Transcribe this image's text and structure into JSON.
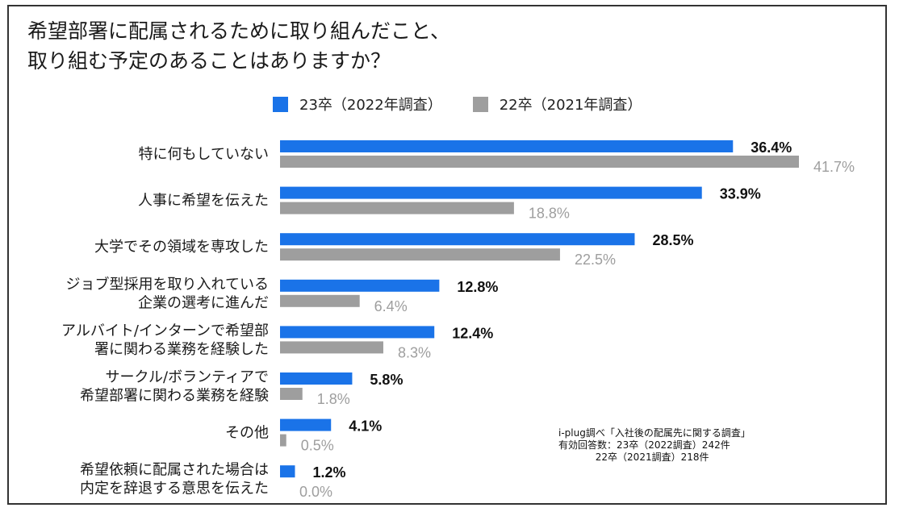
{
  "chart_data": {
    "type": "bar",
    "orientation": "horizontal",
    "title": [
      "希望部署に配属されるために取り組んだこと、",
      "取り組む予定のあることはありますか？"
    ],
    "categories": [
      [
        "特に何もしていない"
      ],
      [
        "人事に希望を伝えた"
      ],
      [
        "大学でその領域を専攻した"
      ],
      [
        "ジョブ型採用を取り入れている",
        "企業の選考に進んだ"
      ],
      [
        "アルバイト/インターンで希望部",
        "署に関わる業務を経験した"
      ],
      [
        "サークル/ボランティアで",
        "希望部署に関わる業務を経験"
      ],
      [
        "その他"
      ],
      [
        "希望依頼に配属された場合は",
        "内定を辞退する意思を伝えた"
      ]
    ],
    "series": [
      {
        "name": "23卒（2022年調査）",
        "color": "#1a73e8",
        "values": [
          36.4,
          33.9,
          28.5,
          12.8,
          12.4,
          5.8,
          4.1,
          1.2
        ],
        "labels": [
          "36.4%",
          "33.9%",
          "28.5%",
          "12.8%",
          "12.4%",
          "5.8%",
          "4.1%",
          "1.2%"
        ]
      },
      {
        "name": "22卒（2021年調査）",
        "color": "#9e9e9e",
        "values": [
          41.7,
          18.8,
          22.5,
          6.4,
          8.3,
          1.8,
          0.5,
          0.0
        ],
        "labels": [
          "41.7%",
          "18.8%",
          "22.5%",
          "6.4%",
          "8.3%",
          "1.8%",
          "0.5%",
          "0.0%"
        ]
      }
    ],
    "xlim": [
      0,
      41.7
    ],
    "legend_position": "top",
    "grid": false
  },
  "source_note": [
    "i-plug調べ「入社後の配属先に関する調査」",
    "有効回答数：23卒（2022調査）242件",
    "            22卒（2021調査）218件"
  ]
}
